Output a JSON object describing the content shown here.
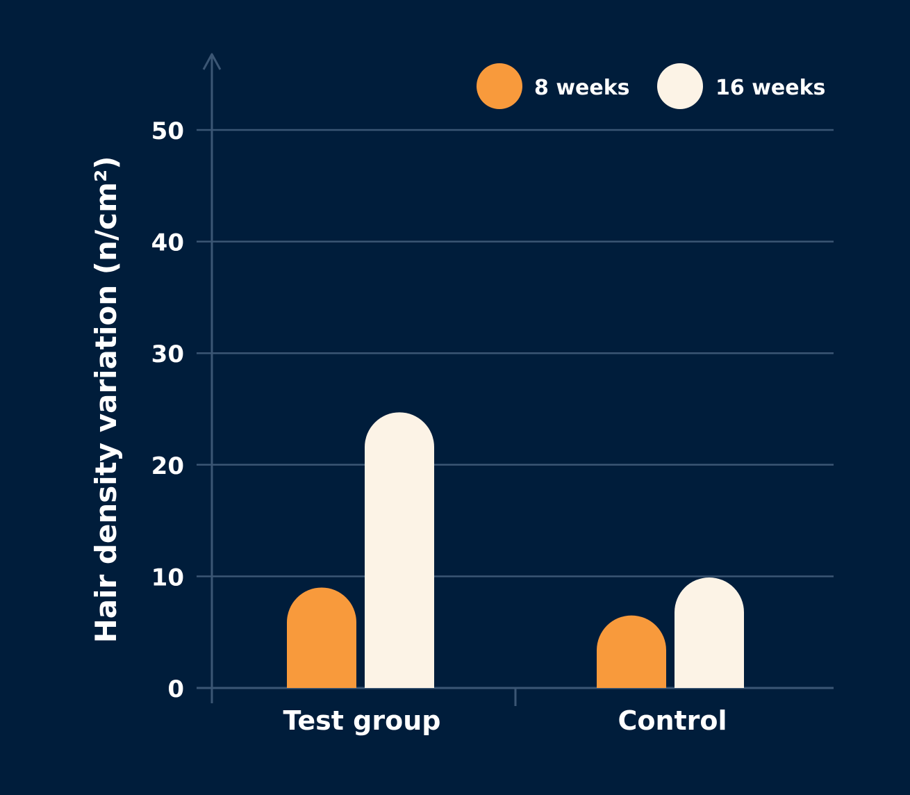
{
  "chart_data": {
    "type": "bar",
    "title": "",
    "xlabel": "",
    "ylabel": "Hair density variation (n/cm²)",
    "categories": [
      "Test group",
      "Control"
    ],
    "series": [
      {
        "name": "8 weeks",
        "values": [
          9,
          6.5
        ]
      },
      {
        "name": "16 weeks",
        "values": [
          24.7,
          9.9
        ]
      }
    ],
    "ylim": [
      0,
      50
    ],
    "yticks": [
      0,
      10,
      20,
      30,
      40,
      50
    ],
    "grid": true,
    "legend": "top-right",
    "colors": {
      "background": "#001d3b",
      "axis": "#3b5674",
      "text": "#ffffff",
      "series": [
        "#f89a3c",
        "#fcf3e6"
      ]
    }
  }
}
